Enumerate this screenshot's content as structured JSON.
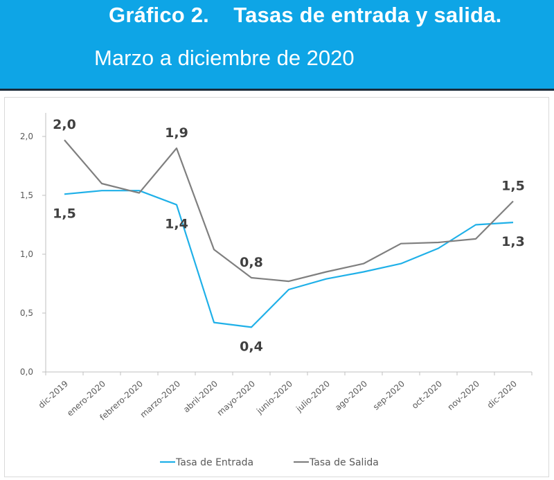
{
  "header": {
    "title": "Gráfico 2.    Tasas de entrada y salida.",
    "subtitle": "Marzo a diciembre de 2020",
    "background_color": "#0ea5e6"
  },
  "chart_data": {
    "type": "line",
    "categories": [
      "dic-2019",
      "enero-2020",
      "febrero-2020",
      "marzo-2020",
      "abril-2020",
      "mayo-2020",
      "junio-2020",
      "julio-2020",
      "ago-2020",
      "sep-2020",
      "oct-2020",
      "nov-2020",
      "dic-2020"
    ],
    "series": [
      {
        "name": "Tasa de Entrada",
        "color": "#1fb0e8",
        "values": [
          1.51,
          1.54,
          1.54,
          1.42,
          0.42,
          0.38,
          0.7,
          0.79,
          0.85,
          0.92,
          1.05,
          1.25,
          1.27
        ]
      },
      {
        "name": "Tasa de Salida",
        "color": "#7f7f7f",
        "values": [
          1.97,
          1.6,
          1.52,
          1.9,
          1.04,
          0.8,
          0.77,
          0.85,
          0.92,
          1.09,
          1.1,
          1.13,
          1.45
        ]
      }
    ],
    "yticks": [
      "0,0",
      "0,5",
      "1,0",
      "1,5",
      "2,0"
    ],
    "ylim": [
      0,
      2.2
    ],
    "annotations": [
      {
        "text": "2,0",
        "series": 1,
        "index": 0,
        "pos": "above"
      },
      {
        "text": "1,5",
        "series": 0,
        "index": 0,
        "pos": "below"
      },
      {
        "text": "1,9",
        "series": 1,
        "index": 3,
        "pos": "above"
      },
      {
        "text": "1,4",
        "series": 0,
        "index": 3,
        "pos": "below"
      },
      {
        "text": "0,8",
        "series": 1,
        "index": 5,
        "pos": "above"
      },
      {
        "text": "0,4",
        "series": 0,
        "index": 5,
        "pos": "below"
      },
      {
        "text": "1,5",
        "series": 1,
        "index": 12,
        "pos": "above"
      },
      {
        "text": "1,3",
        "series": 0,
        "index": 12,
        "pos": "below"
      }
    ],
    "legend": {
      "position": "bottom-center",
      "items": [
        "Tasa de Entrada",
        "Tasa de Salida"
      ]
    },
    "grid": false
  }
}
